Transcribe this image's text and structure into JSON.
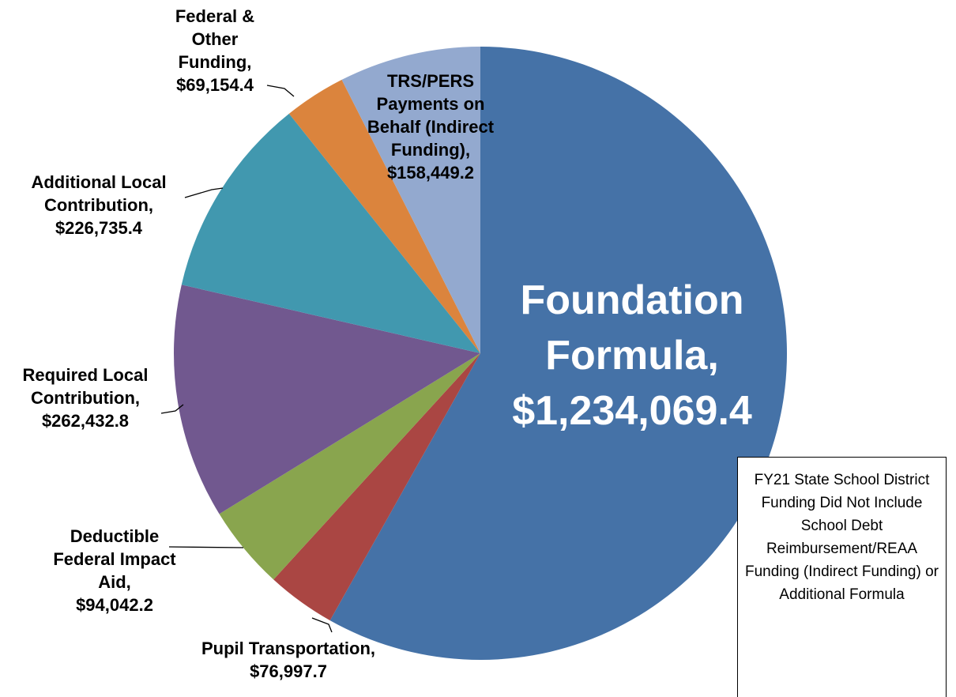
{
  "chart_data": {
    "type": "pie",
    "categories": [
      "Foundation Formula,",
      "Pupil Transportation,",
      "Deductible Federal Impact Aid,",
      "Required Local Contribution,",
      "Additional Local Contribution,",
      "Federal & Other Funding,",
      "TRS/PERS Payments on Behalf (Indirect Funding),"
    ],
    "values": [
      1234069.4,
      76997.7,
      94042.2,
      262432.8,
      226735.4,
      69154.4,
      158449.2
    ],
    "value_labels": [
      "$1,234,069.4",
      "$76,997.7",
      "$94,042.2",
      "$262,432.8",
      "$226,735.4",
      "$69,154.4",
      "$158,449.2"
    ],
    "colors": [
      "#4572a7",
      "#aa4643",
      "#89a54e",
      "#71588f",
      "#4198af",
      "#db843d",
      "#93a9cf"
    ],
    "annotation": "FY21 State School District Funding Did Not Include School Debt Reimbursement/REAA Funding (Indirect Funding) or Additional Formula"
  }
}
